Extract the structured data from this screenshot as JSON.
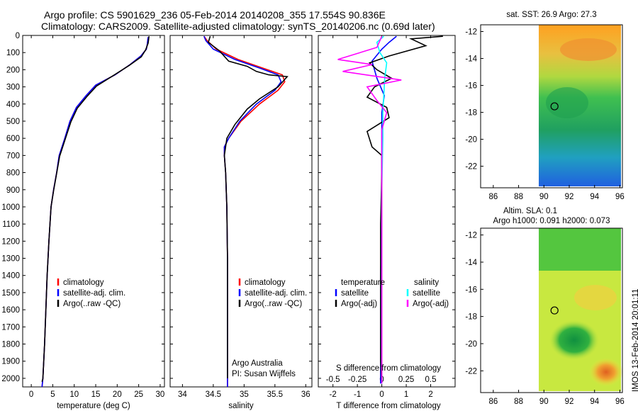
{
  "header": {
    "line1": "Argo profile: CS 5901629_236 05-Feb-2014 20140208_355 17.554S 90.836E",
    "line2": "Climatology: CARS2009. Satellite-adjusted climatology: synTS_20140206.nc (0.69d later)"
  },
  "colors": {
    "climatology": "#ff0000",
    "satellite": "#0000ff",
    "argo": "#000000",
    "salinity_satellite": "#00ffff",
    "salinity_argo": "#ff00ff"
  },
  "chart_data": [
    {
      "type": "line",
      "panel": "temperature",
      "xlabel": "temperature (deg C)",
      "ylabel": "",
      "xlim": [
        -2,
        31
      ],
      "ylim": [
        2050,
        0
      ],
      "xticks": [
        0,
        5,
        10,
        15,
        20,
        25,
        30
      ],
      "yticks": [
        0,
        100,
        200,
        300,
        400,
        500,
        600,
        700,
        800,
        900,
        1000,
        1100,
        1200,
        1300,
        1400,
        1500,
        1600,
        1700,
        1800,
        1900,
        2000
      ],
      "legend": {
        "items": [
          "climatology",
          "satellite-adj. clim.",
          "Argo(..raw -QC)"
        ],
        "placement": "middle-right"
      },
      "series": [
        {
          "name": "climatology",
          "color": "#ff0000",
          "x": [
            27.2,
            27.0,
            26.8,
            25.5,
            23.0,
            19.5,
            15.0,
            12.8,
            10.5,
            9.0,
            7.8,
            6.5,
            5.9,
            5.2,
            4.6,
            4.1,
            3.7,
            3.4,
            3.1,
            2.9,
            2.7,
            2.5
          ],
          "y": [
            10,
            50,
            80,
            120,
            170,
            230,
            290,
            350,
            420,
            500,
            600,
            700,
            800,
            900,
            1000,
            1200,
            1400,
            1600,
            1800,
            1900,
            2000,
            2050
          ]
        },
        {
          "name": "satellite-adj. clim.",
          "color": "#0000ff",
          "x": [
            27.2,
            27.0,
            26.8,
            25.5,
            23.0,
            19.5,
            15.0,
            12.8,
            10.5,
            9.0,
            7.8,
            6.5,
            5.9,
            5.2,
            4.6,
            4.1,
            3.7,
            3.4,
            3.1,
            2.9,
            2.7,
            2.5
          ],
          "y": [
            10,
            50,
            80,
            120,
            170,
            230,
            290,
            350,
            420,
            500,
            600,
            700,
            800,
            900,
            1000,
            1200,
            1400,
            1600,
            1800,
            1900,
            2000,
            2050
          ]
        },
        {
          "name": "Argo(..raw -QC)",
          "color": "#000000",
          "x": [
            27.4,
            27.2,
            26.6,
            25.6,
            22.8,
            19.0,
            15.2,
            13.0,
            10.7,
            9.2,
            7.9,
            6.6,
            5.9,
            5.2,
            4.6,
            4.1,
            3.7,
            3.4,
            3.1,
            2.9,
            2.7,
            2.5
          ],
          "y": [
            5,
            45,
            85,
            125,
            175,
            235,
            295,
            355,
            425,
            505,
            605,
            705,
            805,
            905,
            1000,
            1200,
            1400,
            1600,
            1800,
            1900,
            2000,
            2020
          ]
        }
      ]
    },
    {
      "type": "line",
      "panel": "salinity",
      "xlabel": "salinity",
      "ylabel": "",
      "xlim": [
        33.8,
        36.1
      ],
      "ylim": [
        2050,
        0
      ],
      "xticks": [
        34,
        34.5,
        35,
        35.5,
        36
      ],
      "legend": {
        "items": [
          "climatology",
          "satellite-adj. clim.",
          "Argo(..raw -QC)"
        ],
        "placement": "middle-right"
      },
      "annotations": [
        "Argo Australia",
        "PI: Susan Wijffels"
      ],
      "series": [
        {
          "name": "climatology",
          "color": "#ff0000",
          "x": [
            34.35,
            34.4,
            34.55,
            34.9,
            35.3,
            35.62,
            35.66,
            35.55,
            35.25,
            34.95,
            34.75,
            34.68,
            34.68,
            34.7,
            34.71,
            34.72,
            34.73,
            34.73,
            34.73
          ],
          "y": [
            5,
            30,
            80,
            140,
            190,
            230,
            270,
            320,
            400,
            500,
            600,
            650,
            700,
            800,
            900,
            1000,
            1300,
            1700,
            2050
          ]
        },
        {
          "name": "satellite-adj. clim.",
          "color": "#0000ff",
          "x": [
            34.35,
            34.38,
            34.5,
            34.85,
            35.25,
            35.55,
            35.6,
            35.5,
            35.2,
            34.93,
            34.75,
            34.68,
            34.68,
            34.7,
            34.71,
            34.72,
            34.73,
            34.73,
            34.73
          ],
          "y": [
            5,
            30,
            80,
            140,
            190,
            230,
            270,
            320,
            400,
            500,
            600,
            650,
            700,
            800,
            900,
            1000,
            1300,
            1700,
            2050
          ]
        },
        {
          "name": "Argo(..raw -QC)",
          "color": "#000000",
          "x": [
            34.45,
            34.42,
            34.6,
            34.75,
            35.05,
            35.2,
            35.4,
            35.7,
            35.55,
            35.25,
            35.05,
            34.85,
            34.72,
            34.68,
            34.7,
            34.72,
            34.73,
            34.73
          ],
          "y": [
            5,
            40,
            90,
            150,
            180,
            210,
            230,
            240,
            300,
            370,
            430,
            520,
            600,
            700,
            800,
            1000,
            1300,
            2000
          ]
        }
      ]
    },
    {
      "type": "line",
      "panel": "differences",
      "xlabel": "T difference from climatology",
      "xlabel_top": "S difference from climatology",
      "xlim": [
        -2.6,
        3.0
      ],
      "ylim": [
        2050,
        0
      ],
      "xticks": [
        -2,
        -1,
        0,
        1,
        2
      ],
      "xticks_s": [
        -0.5,
        -0.25,
        0,
        0.25,
        0.5
      ],
      "legend": {
        "headers": [
          "temperature",
          "salinity"
        ],
        "items": [
          "satellite",
          "Argo(-adj)",
          "satellite",
          "Argo(-adj)"
        ],
        "placement": "middle"
      },
      "series": [
        {
          "name": "satellite",
          "group": "temperature",
          "color": "#0000ff",
          "x": [
            0.6,
            0.3,
            0.0,
            -0.4,
            -0.2,
            0.1,
            0.0,
            0.0,
            0.0,
            0.0,
            -0.05,
            -0.05,
            -0.05,
            -0.05
          ],
          "y": [
            5,
            40,
            80,
            150,
            250,
            350,
            450,
            550,
            800,
            1100,
            1400,
            1700,
            1900,
            2030
          ]
        },
        {
          "name": "Argo(-adj)",
          "group": "temperature",
          "color": "#000000",
          "x": [
            2.5,
            1.2,
            1.8,
            0.3,
            -0.5,
            -0.2,
            0.4,
            -0.3,
            -0.6,
            0.2,
            0.3,
            -0.6,
            -0.4,
            0.0,
            0.0,
            -0.05,
            -0.05,
            -0.05,
            0.0
          ],
          "y": [
            5,
            20,
            60,
            120,
            160,
            200,
            250,
            300,
            360,
            420,
            480,
            560,
            650,
            700,
            800,
            1100,
            1500,
            1900,
            2030
          ]
        },
        {
          "name": "satellite",
          "group": "salinity",
          "color": "#00ffff",
          "x": [
            0.02,
            -0.05,
            -0.02,
            0.05,
            0.03,
            0.02,
            0.01,
            0.01,
            0.0,
            0.0,
            0.0,
            0.0
          ],
          "y": [
            5,
            40,
            100,
            160,
            250,
            350,
            450,
            600,
            900,
            1300,
            1700,
            2030
          ]
        },
        {
          "name": "Argo(-adj)",
          "group": "salinity",
          "color": "#ff00ff",
          "x": [
            0.0,
            -0.05,
            -0.45,
            -0.1,
            -0.4,
            0.2,
            -0.15,
            -0.05,
            0.05,
            0.0,
            0.0,
            0.0,
            0.0
          ],
          "y": [
            5,
            70,
            140,
            170,
            210,
            260,
            300,
            380,
            450,
            550,
            900,
            1400,
            2030
          ]
        }
      ]
    },
    {
      "type": "heatmap",
      "panel": "satellite-sst-map",
      "title": "sat. SST: 26.9 Argo: 27.3",
      "xlim": [
        85,
        96.2
      ],
      "ylim": [
        -23.6,
        -11.5
      ],
      "xticks": [
        86,
        88,
        90,
        92,
        94,
        96
      ],
      "yticks": [
        -12,
        -14,
        -16,
        -18,
        -20,
        -22
      ],
      "marker": {
        "lon": 90.836,
        "lat": -17.554
      }
    },
    {
      "type": "heatmap",
      "panel": "altimetry-sla-map",
      "title_line1": "Altim. SLA: 0.1",
      "title_line2": "Argo h1000: 0.091 h2000: 0.073",
      "xlim": [
        85,
        96.2
      ],
      "ylim": [
        -23.6,
        -11.5
      ],
      "xticks": [
        86,
        88,
        90,
        92,
        94,
        96
      ],
      "yticks": [
        -12,
        -14,
        -16,
        -18,
        -20,
        -22
      ],
      "marker": {
        "lon": 90.836,
        "lat": -17.554
      }
    }
  ],
  "watermark": "IMOS 13-Feb-2014 20:01:11"
}
